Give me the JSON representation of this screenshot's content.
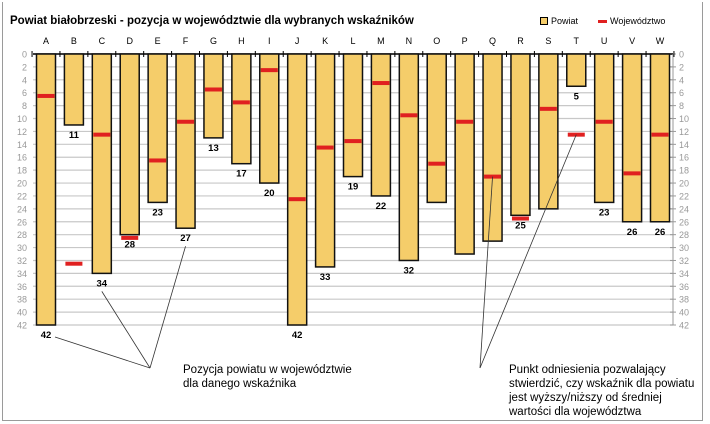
{
  "chart_data": {
    "type": "bar",
    "title": "Powiat białobrzeski - pozycja w województwie dla wybranych wskaźników",
    "categories": [
      "A",
      "B",
      "C",
      "D",
      "E",
      "F",
      "G",
      "H",
      "I",
      "J",
      "K",
      "L",
      "M",
      "N",
      "O",
      "P",
      "Q",
      "R",
      "S",
      "T",
      "U",
      "V",
      "W"
    ],
    "series": [
      {
        "name": "Powiat",
        "values": [
          42,
          11,
          34,
          28,
          23,
          27,
          13,
          17,
          20,
          42,
          33,
          19,
          22,
          32,
          23,
          31,
          29,
          25,
          24,
          5,
          23,
          26,
          26
        ]
      },
      {
        "name": "Województwo",
        "values": [
          6.5,
          32.5,
          12.5,
          28.5,
          16.5,
          10.5,
          5.5,
          7.5,
          2.5,
          22.5,
          14.5,
          13.5,
          4.5,
          9.5,
          17,
          10.5,
          19,
          25.5,
          8.5,
          12.5,
          10.5,
          18.5,
          12.5
        ]
      }
    ],
    "value_labels": [
      "42",
      "11",
      "34",
      "28",
      "23",
      "27",
      "13",
      "17",
      "20",
      "42",
      "33",
      "19",
      "22",
      "32",
      "",
      "",
      "",
      "25",
      "",
      "5",
      "23",
      "26",
      "26"
    ],
    "yticks": [
      "0",
      "2",
      "4",
      "6",
      "8",
      "10",
      "12",
      "14",
      "16",
      "18",
      "20",
      "22",
      "24",
      "26",
      "28",
      "30",
      "32",
      "34",
      "36",
      "38",
      "40",
      "42"
    ],
    "ylim": [
      0,
      42
    ],
    "y_inverted": true,
    "grid": true,
    "legend_position": "top-right",
    "annotations": [
      "Pozycja powiatu w województwie dla danego wskaźnika",
      "Punkt odniesienia pozwalający stwierdzić, czy wskaźnik dla powiatu jest wyższy/niższy od średniej wartości dla województwa"
    ],
    "colors": {
      "bar": "#f5cd6a",
      "marker": "#e02020",
      "grid": "#c8c8c8"
    }
  },
  "legend": {
    "powiat": "Powiat",
    "wojewodztwo": "Województwo"
  },
  "notes": {
    "left": [
      "Pozycja powiatu w województwie",
      "dla danego wskaźnika"
    ],
    "right": [
      "Punkt odniesienia pozwalający",
      "stwierdzić, czy wskaźnik dla powiatu",
      "jest wyższy/niższy od średniej",
      "wartości dla województwa"
    ]
  }
}
